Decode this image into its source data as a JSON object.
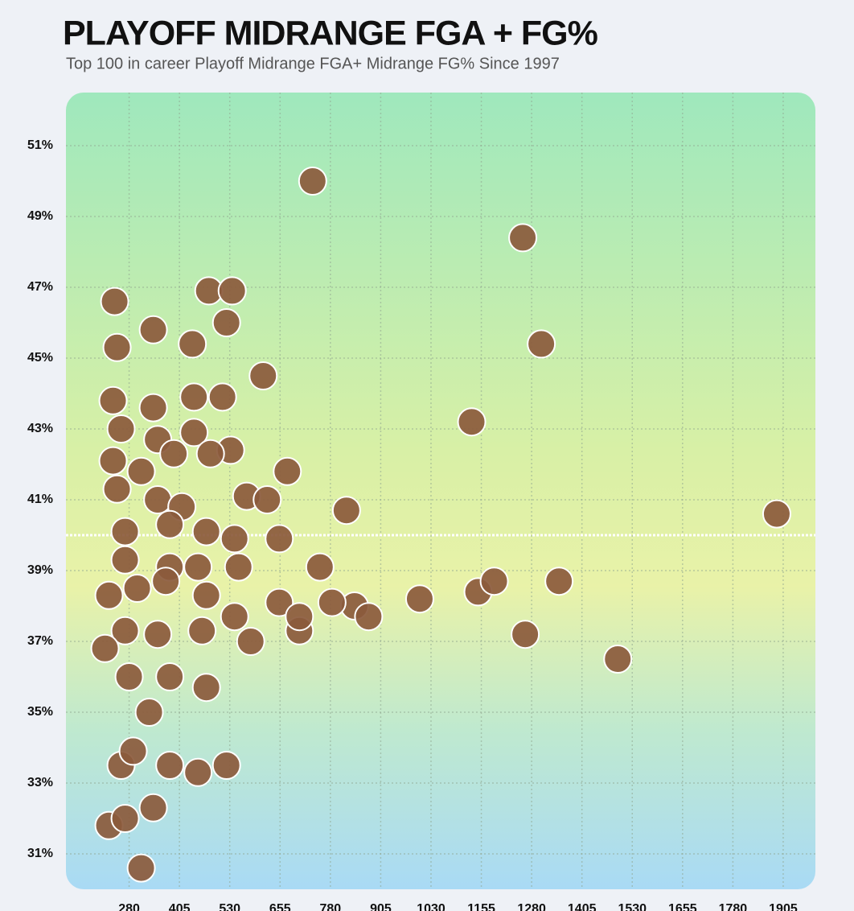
{
  "chart_data": {
    "type": "scatter",
    "title": "PLAYOFF MIDRANGE FGA + FG%",
    "subtitle": "Top 100 in career Playoff Midrange FGA+ Midrange FG% Since 1997",
    "x": [
      736,
      1258,
      1304,
      1131,
      1889,
      1494,
      1348,
      1264,
      1147,
      1187,
      1002,
      820,
      673,
      840,
      875,
      703,
      244,
      340,
      478,
      536,
      250,
      437,
      522,
      613,
      240,
      340,
      441,
      512,
      260,
      351,
      441,
      532,
      240,
      310,
      391,
      250,
      351,
      411,
      482,
      572,
      623,
      270,
      381,
      472,
      542,
      653,
      270,
      381,
      451,
      552,
      754,
      230,
      300,
      371,
      472,
      653,
      703,
      784,
      270,
      351,
      461,
      542,
      582,
      220,
      280,
      381,
      472,
      330,
      260,
      290,
      381,
      451,
      522,
      230,
      270,
      340,
      310
    ],
    "y": [
      50.0,
      48.4,
      45.4,
      43.2,
      40.6,
      36.5,
      38.7,
      37.2,
      38.4,
      38.7,
      38.2,
      40.7,
      41.8,
      38.0,
      37.7,
      37.3,
      46.6,
      45.8,
      46.9,
      46.9,
      45.3,
      45.4,
      46.0,
      44.5,
      43.8,
      43.6,
      43.9,
      43.9,
      43.0,
      42.7,
      42.9,
      42.4,
      42.1,
      41.8,
      42.3,
      41.3,
      41.0,
      40.8,
      42.3,
      41.1,
      41.0,
      40.1,
      40.3,
      40.1,
      39.9,
      39.9,
      39.3,
      39.1,
      39.1,
      39.1,
      39.1,
      38.3,
      38.5,
      38.7,
      38.3,
      38.1,
      37.7,
      38.1,
      37.3,
      37.2,
      37.3,
      37.7,
      37.0,
      36.8,
      36.0,
      36.0,
      35.7,
      35.0,
      33.5,
      33.9,
      33.5,
      33.3,
      33.5,
      31.8,
      32.0,
      32.3,
      30.6
    ],
    "color": "#8b5a3c",
    "reference_line": 40,
    "xlim": [
      123,
      1985
    ],
    "ylim": [
      30,
      52.5
    ],
    "xticks": [
      280,
      405,
      530,
      655,
      780,
      905,
      1030,
      1155,
      1280,
      1405,
      1530,
      1655,
      1780,
      1905
    ],
    "yticks": [
      {
        "value": 31,
        "label": "31%"
      },
      {
        "value": 33,
        "label": "33%"
      },
      {
        "value": 35,
        "label": "35%"
      },
      {
        "value": 37,
        "label": "37%"
      },
      {
        "value": 39,
        "label": "39%"
      },
      {
        "value": 41,
        "label": "41%"
      },
      {
        "value": 43,
        "label": "43%"
      },
      {
        "value": 45,
        "label": "45%"
      },
      {
        "value": 47,
        "label": "47%"
      },
      {
        "value": 49,
        "label": "49%"
      },
      {
        "value": 51,
        "label": "51%"
      }
    ],
    "grid": true
  }
}
